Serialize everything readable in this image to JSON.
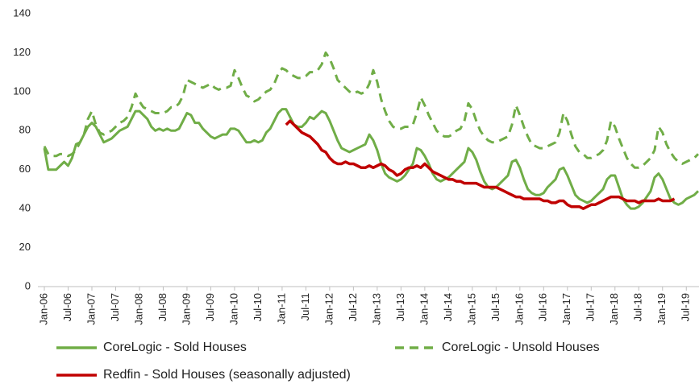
{
  "chart_data": {
    "type": "line",
    "categories": [
      "Jan-06",
      null,
      null,
      null,
      null,
      null,
      "Jul-06",
      null,
      null,
      null,
      null,
      null,
      "Jan-07",
      null,
      null,
      null,
      null,
      null,
      "Jul-07",
      null,
      null,
      null,
      null,
      null,
      "Jan-08",
      null,
      null,
      null,
      null,
      null,
      "Jul-08",
      null,
      null,
      null,
      null,
      null,
      "Jan-09",
      null,
      null,
      null,
      null,
      null,
      "Jul-09",
      null,
      null,
      null,
      null,
      null,
      "Jan-10",
      null,
      null,
      null,
      null,
      null,
      "Jul-10",
      null,
      null,
      null,
      null,
      null,
      "Jan-11",
      null,
      null,
      null,
      null,
      null,
      "Jul-11",
      null,
      null,
      null,
      null,
      null,
      "Jan-12",
      null,
      null,
      null,
      null,
      null,
      "Jul-12",
      null,
      null,
      null,
      null,
      null,
      "Jan-13",
      null,
      null,
      null,
      null,
      null,
      "Jul-13",
      null,
      null,
      null,
      null,
      null,
      "Jan-14",
      null,
      null,
      null,
      null,
      null,
      "Jul-14",
      null,
      null,
      null,
      null,
      null,
      "Jan-15",
      null,
      null,
      null,
      null,
      null,
      "Jul-15",
      null,
      null,
      null,
      null,
      null,
      "Jan-16",
      null,
      null,
      null,
      null,
      null,
      "Jul-16",
      null,
      null,
      null,
      null,
      null,
      "Jan-17",
      null,
      null,
      null,
      null,
      null,
      "Jul-17",
      null,
      null,
      null,
      null,
      null,
      "Jan-18",
      null,
      null,
      null,
      null,
      null,
      "Jul-18",
      null,
      null,
      null,
      null,
      null,
      "Jan-19",
      null,
      null,
      null,
      null,
      null,
      "Jul-19",
      null,
      null,
      null
    ],
    "series": [
      {
        "name": "CoreLogic - Sold Houses",
        "color": "#70ad47",
        "dashed": false,
        "values": [
          71,
          60,
          60,
          60,
          62,
          64,
          62,
          66,
          73,
          74,
          78,
          82,
          84,
          82,
          78,
          74,
          75,
          76,
          78,
          80,
          81,
          82,
          86,
          90,
          90,
          88,
          86,
          82,
          80,
          81,
          80,
          81,
          80,
          80,
          81,
          85,
          89,
          88,
          84,
          84,
          81,
          79,
          77,
          76,
          77,
          78,
          78,
          81,
          81,
          80,
          77,
          74,
          74,
          75,
          74,
          75,
          79,
          81,
          85,
          89,
          91,
          91,
          87,
          83,
          82,
          82,
          84,
          87,
          86,
          88,
          90,
          89,
          85,
          80,
          75,
          71,
          70,
          69,
          70,
          71,
          72,
          73,
          78,
          75,
          70,
          63,
          58,
          56,
          55,
          54,
          55,
          57,
          60,
          63,
          71,
          70,
          67,
          63,
          58,
          55,
          54,
          55,
          56,
          58,
          60,
          62,
          64,
          71,
          69,
          65,
          59,
          54,
          51,
          50,
          51,
          53,
          55,
          57,
          64,
          65,
          61,
          55,
          50,
          48,
          47,
          47,
          48,
          51,
          53,
          55,
          60,
          61,
          57,
          52,
          47,
          45,
          44,
          43,
          44,
          46,
          48,
          50,
          55,
          57,
          57,
          51,
          45,
          42,
          40,
          40,
          41,
          43,
          46,
          49,
          56,
          58,
          55,
          50,
          45,
          43,
          42,
          43,
          45,
          46,
          47,
          49
        ]
      },
      {
        "name": "CoreLogic - Unsold Houses",
        "color": "#70ad47",
        "dashed": true,
        "values": [
          72,
          68,
          67,
          67,
          68,
          68,
          67,
          68,
          70,
          74,
          78,
          86,
          90,
          83,
          79,
          78,
          79,
          80,
          82,
          84,
          85,
          87,
          92,
          99,
          95,
          92,
          91,
          90,
          89,
          89,
          89,
          90,
          92,
          92,
          94,
          98,
          106,
          105,
          104,
          103,
          102,
          103,
          104,
          102,
          101,
          102,
          102,
          103,
          111,
          107,
          102,
          98,
          97,
          95,
          96,
          98,
          100,
          101,
          104,
          109,
          112,
          111,
          109,
          108,
          107,
          107,
          108,
          110,
          110,
          111,
          114,
          120,
          117,
          112,
          106,
          104,
          102,
          100,
          99,
          100,
          99,
          100,
          104,
          111,
          105,
          96,
          90,
          85,
          82,
          81,
          81,
          82,
          82,
          83,
          89,
          97,
          93,
          88,
          84,
          80,
          78,
          77,
          77,
          78,
          80,
          81,
          85,
          94,
          91,
          85,
          80,
          77,
          75,
          74,
          74,
          75,
          76,
          77,
          83,
          93,
          88,
          82,
          77,
          73,
          72,
          71,
          71,
          72,
          73,
          74,
          79,
          89,
          85,
          78,
          72,
          69,
          68,
          66,
          66,
          67,
          68,
          70,
          75,
          85,
          82,
          76,
          71,
          66,
          63,
          61,
          61,
          62,
          64,
          66,
          70,
          82,
          79,
          73,
          69,
          66,
          64,
          63,
          64,
          65,
          66,
          68
        ]
      },
      {
        "name": "Redfin - Sold Houses (seasonally adjusted)",
        "color": "#c00000",
        "dashed": false,
        "values": [
          null,
          null,
          null,
          null,
          null,
          null,
          null,
          null,
          null,
          null,
          null,
          null,
          null,
          null,
          null,
          null,
          null,
          null,
          null,
          null,
          null,
          null,
          null,
          null,
          null,
          null,
          null,
          null,
          null,
          null,
          null,
          null,
          null,
          null,
          null,
          null,
          null,
          null,
          null,
          null,
          null,
          null,
          null,
          null,
          null,
          null,
          null,
          null,
          null,
          null,
          null,
          null,
          null,
          null,
          null,
          null,
          null,
          null,
          null,
          null,
          null,
          83,
          85,
          83,
          81,
          79,
          78,
          77,
          75,
          73,
          70,
          69,
          66,
          64,
          63,
          63,
          64,
          63,
          63,
          62,
          61,
          61,
          62,
          61,
          62,
          63,
          62,
          60,
          59,
          57,
          58,
          60,
          61,
          61,
          62,
          61,
          63,
          61,
          59,
          58,
          57,
          56,
          55,
          55,
          54,
          54,
          53,
          53,
          53,
          53,
          52,
          51,
          51,
          51,
          51,
          50,
          49,
          48,
          47,
          46,
          46,
          45,
          45,
          45,
          45,
          45,
          44,
          44,
          43,
          43,
          44,
          44,
          42,
          41,
          41,
          41,
          40,
          41,
          42,
          42,
          43,
          44,
          45,
          46,
          46,
          46,
          45,
          44,
          44,
          44,
          43,
          44,
          44,
          44,
          44,
          45,
          44,
          44,
          44,
          45,
          null,
          null,
          null,
          null,
          null,
          null
        ]
      }
    ],
    "ylim": [
      0,
      140
    ],
    "yticks": [
      0,
      20,
      40,
      60,
      80,
      100,
      120,
      140
    ],
    "grid": false
  }
}
